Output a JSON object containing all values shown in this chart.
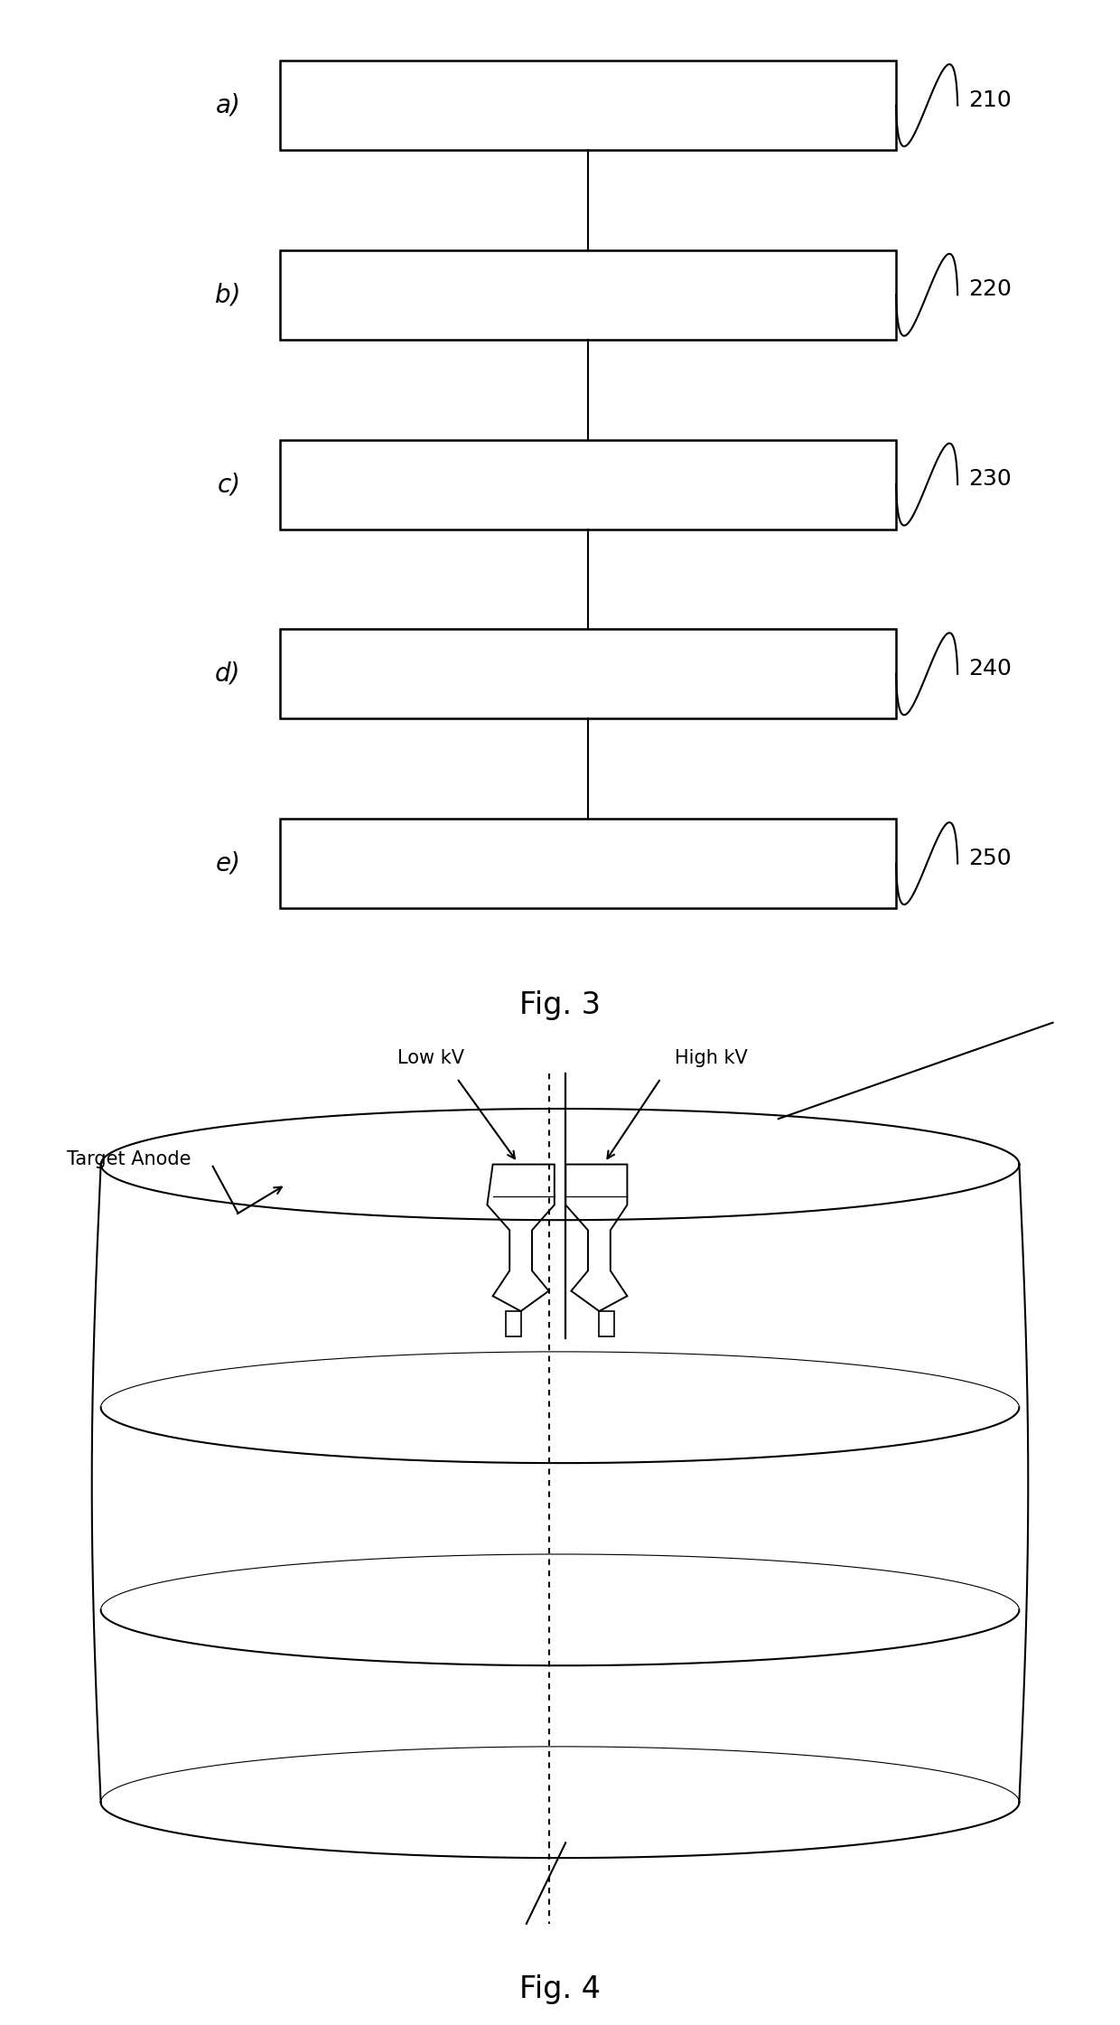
{
  "fig3_labels": [
    "a)",
    "b)",
    "c)",
    "d)",
    "e)"
  ],
  "fig3_refs": [
    "210",
    "220",
    "230",
    "240",
    "250"
  ],
  "fig3_caption": "Fig. 3",
  "fig4_caption": "Fig. 4",
  "background_color": "#ffffff",
  "line_color": "#000000",
  "label_fontsize": 20,
  "ref_fontsize": 18,
  "caption_fontsize": 24
}
